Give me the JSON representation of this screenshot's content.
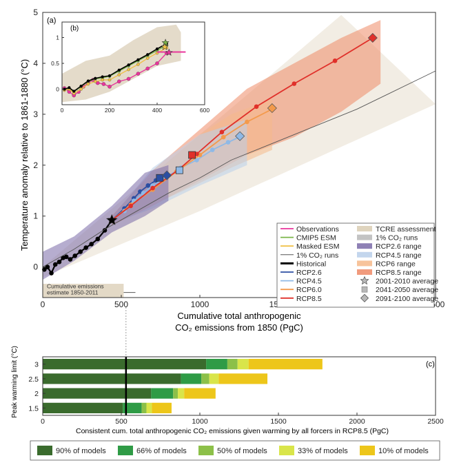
{
  "colors": {
    "historical": "#000000",
    "rcp26": "#2b4ea2",
    "rcp45": "#8fb9e6",
    "rcp60": "#f39a4c",
    "rcp85": "#e0302a",
    "observations": "#e8359b",
    "cmip5_esm": "#7ab648",
    "masked_esm": "#f0c24a",
    "one_pct": "#555555",
    "tcre": "#d9ccb3",
    "one_pct_range": "#b8b8b8",
    "rcp26_range": "#7a6aa8",
    "rcp45_range": "#b9cfea",
    "rcp60_range": "#f6b98a",
    "rcp85_range": "#ee8a66",
    "bar_90": "#3a6b2d",
    "bar_66": "#2f9b46",
    "bar_50": "#8cc049",
    "bar_33": "#d9e54a",
    "bar_10": "#edc61a"
  },
  "chart_data": [
    {
      "id": "a",
      "panel_label": "(a)",
      "type": "line",
      "xlabel": "Cumulative total anthropogenic",
      "xlabel_line2": "CO₂ emissions from 1850 (PgC)",
      "ylabel": "Temperature anomaly relative to 1861-1880 (°C)",
      "xlim": [
        0,
        2500
      ],
      "ylim": [
        -0.6,
        5
      ],
      "xticks": [
        0,
        500,
        1000,
        1500,
        2000,
        2500
      ],
      "yticks": [
        0,
        1,
        2,
        3,
        4,
        5
      ],
      "series": [
        {
          "name": "Historical",
          "key": "historical",
          "x": [
            10,
            30,
            55,
            80,
            105,
            130,
            150,
            175,
            205,
            240,
            275,
            310,
            350,
            395,
            440
          ],
          "y": [
            -0.05,
            0.0,
            -0.12,
            0.05,
            0.1,
            0.18,
            0.2,
            0.15,
            0.22,
            0.3,
            0.38,
            0.45,
            0.55,
            0.72,
            0.92
          ]
        },
        {
          "name": "RCP2.6",
          "key": "rcp26",
          "x": [
            440,
            520,
            580,
            620,
            670,
            720,
            760,
            790
          ],
          "y": [
            0.92,
            1.15,
            1.35,
            1.48,
            1.6,
            1.7,
            1.78,
            1.8
          ]
        },
        {
          "name": "RCP4.5",
          "key": "rcp45",
          "x": [
            440,
            520,
            580,
            640,
            700,
            780,
            880,
            980,
            1080,
            1180,
            1250
          ],
          "y": [
            0.92,
            1.1,
            1.3,
            1.45,
            1.6,
            1.75,
            1.95,
            2.1,
            2.3,
            2.45,
            2.55
          ]
        },
        {
          "name": "RCP6.0",
          "key": "rcp60",
          "x": [
            440,
            560,
            700,
            850,
            1000,
            1150,
            1300,
            1460
          ],
          "y": [
            0.92,
            1.22,
            1.52,
            1.87,
            2.2,
            2.55,
            2.85,
            3.1
          ]
        },
        {
          "name": "RCP8.5",
          "key": "rcp85",
          "x": [
            440,
            560,
            700,
            860,
            980,
            1140,
            1360,
            1600,
            1860,
            2100
          ],
          "y": [
            0.92,
            1.2,
            1.55,
            1.9,
            2.22,
            2.65,
            3.15,
            3.6,
            4.05,
            4.5
          ]
        },
        {
          "name": "1% CO₂ runs",
          "key": "one_pct",
          "x": [
            0,
            200,
            400,
            600,
            800,
            1000,
            1200,
            1400,
            1600,
            1800,
            2000,
            2200,
            2400,
            2500
          ],
          "y": [
            0,
            0.35,
            0.75,
            1.1,
            1.45,
            1.75,
            2.1,
            2.35,
            2.6,
            2.85,
            3.1,
            3.4,
            3.7,
            3.85
          ]
        }
      ],
      "markers": [
        {
          "series": "historical",
          "shape": "star",
          "x": 440,
          "y": 0.92
        },
        {
          "series": "rcp26",
          "shape": "square",
          "x": 745,
          "y": 1.75
        },
        {
          "series": "rcp26",
          "shape": "diamond",
          "x": 790,
          "y": 1.8
        },
        {
          "series": "rcp45",
          "shape": "square",
          "x": 870,
          "y": 1.9
        },
        {
          "series": "rcp45",
          "shape": "diamond",
          "x": 1255,
          "y": 2.57
        },
        {
          "series": "rcp60",
          "shape": "diamond",
          "x": 1460,
          "y": 3.12
        },
        {
          "series": "rcp85",
          "shape": "square",
          "x": 950,
          "y": 2.2
        },
        {
          "series": "rcp85",
          "shape": "diamond",
          "x": 2100,
          "y": 4.5
        }
      ],
      "ranges": [
        {
          "key": "rcp85_range",
          "upper": [
            [
              440,
              1.0
            ],
            [
              700,
              1.9
            ],
            [
              1000,
              2.7
            ],
            [
              1300,
              3.5
            ],
            [
              1600,
              4.0
            ],
            [
              1900,
              4.5
            ],
            [
              2150,
              4.85
            ]
          ],
          "lower": [
            [
              2150,
              3.6
            ],
            [
              1900,
              3.05
            ],
            [
              1600,
              2.55
            ],
            [
              1300,
              2.2
            ],
            [
              1000,
              1.7
            ],
            [
              700,
              1.2
            ],
            [
              440,
              0.82
            ]
          ]
        },
        {
          "key": "rcp60_range",
          "upper": [
            [
              440,
              1.0
            ],
            [
              700,
              1.8
            ],
            [
              1000,
              2.6
            ],
            [
              1200,
              3.0
            ],
            [
              1460,
              3.3
            ]
          ],
          "lower": [
            [
              1460,
              2.3
            ],
            [
              1200,
              1.95
            ],
            [
              1000,
              1.65
            ],
            [
              700,
              1.22
            ],
            [
              440,
              0.82
            ]
          ]
        },
        {
          "key": "rcp45_range",
          "upper": [
            [
              440,
              0.98
            ],
            [
              700,
              1.95
            ],
            [
              1000,
              2.6
            ],
            [
              1300,
              2.9
            ]
          ],
          "lower": [
            [
              1300,
              2.0
            ],
            [
              1000,
              1.6
            ],
            [
              700,
              1.15
            ],
            [
              440,
              0.85
            ]
          ]
        },
        {
          "key": "rcp26_range",
          "upper": [
            [
              0,
              0.3
            ],
            [
              200,
              0.6
            ],
            [
              440,
              1.2
            ],
            [
              650,
              1.85
            ],
            [
              800,
              2.0
            ]
          ],
          "lower": [
            [
              800,
              1.3
            ],
            [
              650,
              1.0
            ],
            [
              440,
              0.68
            ],
            [
              200,
              0.12
            ],
            [
              0,
              -0.25
            ]
          ]
        }
      ],
      "tcre_band": {
        "upper": [
          [
            0,
            0
          ],
          [
            500,
            1.3
          ],
          [
            1000,
            2.6
          ],
          [
            1500,
            3.9
          ],
          [
            1900,
            4.95
          ]
        ],
        "lower": [
          [
            2500,
            3.2
          ],
          [
            2000,
            2.5
          ],
          [
            1500,
            1.8
          ],
          [
            1000,
            1.1
          ],
          [
            500,
            0.45
          ],
          [
            0,
            -0.2
          ]
        ]
      },
      "cumulative_box": {
        "label_line1": "Cumulative emissions",
        "label_line2": "estimate 1850-2011",
        "xmin": 0,
        "xmax": 515,
        "center": 530,
        "whisker_max": 590
      },
      "legend_left": [
        {
          "label": "Observations",
          "key": "observations",
          "kind": "line"
        },
        {
          "label": "CMIP5 ESM",
          "key": "cmip5_esm",
          "kind": "line"
        },
        {
          "label": "Masked ESM",
          "key": "masked_esm",
          "kind": "line"
        },
        {
          "label": "1% CO₂ runs",
          "key": "one_pct",
          "kind": "thinline"
        },
        {
          "label": "Historical",
          "key": "historical",
          "kind": "thick"
        },
        {
          "label": "RCP2.6",
          "key": "rcp26",
          "kind": "line"
        },
        {
          "label": "RCP4.5",
          "key": "rcp45",
          "kind": "line"
        },
        {
          "label": "RCP6.0",
          "key": "rcp60",
          "kind": "line"
        },
        {
          "label": "RCP8.5",
          "key": "rcp85",
          "kind": "line"
        }
      ],
      "legend_right": [
        {
          "label": "TCRE assessment",
          "key": "tcre",
          "kind": "patch"
        },
        {
          "label": "1% CO₂ runs",
          "key": "one_pct_range",
          "kind": "patch"
        },
        {
          "label": "RCP2.6 range",
          "key": "rcp26_range",
          "kind": "patch"
        },
        {
          "label": "RCP4.5 range",
          "key": "rcp45_range",
          "kind": "patch"
        },
        {
          "label": "RCP6 range",
          "key": "rcp60_range",
          "kind": "patch"
        },
        {
          "label": "RCP8.5 range",
          "key": "rcp85_range",
          "kind": "patch"
        },
        {
          "label": "2001-2010 average",
          "key": "star",
          "kind": "star"
        },
        {
          "label": "2041-2050 average",
          "key": "square",
          "kind": "square"
        },
        {
          "label": "2091-2100 average",
          "key": "diamond",
          "kind": "diamond"
        }
      ]
    },
    {
      "id": "b",
      "panel_label": "(b)",
      "type": "line",
      "xlim": [
        0,
        600
      ],
      "ylim": [
        -0.3,
        1.3
      ],
      "xticks": [
        0,
        200,
        400,
        600
      ],
      "yticks": [
        0,
        0.5,
        1
      ],
      "ytick_labels": [
        "0",
        "0.5",
        "1"
      ],
      "series": [
        {
          "name": "Observations",
          "key": "observations",
          "x": [
            10,
            30,
            50,
            70,
            90,
            110,
            130,
            150,
            175,
            200,
            240,
            280,
            320,
            360,
            400,
            440
          ],
          "y": [
            0.02,
            -0.05,
            -0.12,
            -0.05,
            0.05,
            0.12,
            0.18,
            0.12,
            0.1,
            0.05,
            0.15,
            0.2,
            0.3,
            0.4,
            0.5,
            0.7
          ]
        },
        {
          "name": "CMIP5 ESM",
          "key": "cmip5_esm",
          "x": [
            10,
            30,
            50,
            80,
            110,
            140,
            170,
            200,
            240,
            280,
            320,
            360,
            400,
            440
          ],
          "y": [
            0.0,
            0.02,
            -0.05,
            0.05,
            0.15,
            0.2,
            0.22,
            0.25,
            0.35,
            0.45,
            0.55,
            0.65,
            0.75,
            0.85
          ]
        },
        {
          "name": "Masked ESM",
          "key": "masked_esm",
          "x": [
            10,
            30,
            50,
            80,
            110,
            140,
            170,
            200,
            240,
            280,
            320,
            360,
            400,
            440
          ],
          "y": [
            -0.02,
            0.0,
            -0.08,
            0.0,
            0.1,
            0.15,
            0.18,
            0.18,
            0.28,
            0.38,
            0.48,
            0.6,
            0.7,
            0.8
          ]
        },
        {
          "name": "Historical",
          "key": "historical",
          "x": [
            10,
            30,
            50,
            80,
            110,
            140,
            170,
            200,
            240,
            280,
            320,
            360,
            400,
            440
          ],
          "y": [
            0.0,
            0.03,
            -0.04,
            0.06,
            0.16,
            0.21,
            0.24,
            0.26,
            0.37,
            0.47,
            0.57,
            0.67,
            0.78,
            0.88
          ]
        }
      ],
      "obs_whisker": {
        "xmin": 400,
        "xmax": 520,
        "y": 0.72
      },
      "envelope": {
        "upper": [
          [
            0,
            0.3
          ],
          [
            100,
            0.55
          ],
          [
            200,
            0.65
          ],
          [
            300,
            0.95
          ],
          [
            400,
            1.2
          ],
          [
            480,
            1.25
          ],
          [
            500,
            1.1
          ]
        ],
        "lower": [
          [
            500,
            0.55
          ],
          [
            400,
            0.45
          ],
          [
            300,
            0.2
          ],
          [
            200,
            -0.05
          ],
          [
            100,
            -0.2
          ],
          [
            0,
            -0.25
          ]
        ]
      }
    },
    {
      "id": "c",
      "panel_label": "(c)",
      "type": "bar",
      "xlabel": "Consistent cum. total anthropogenic CO₂ emissions given warming by all forcers in RCP8.5 (PgC)",
      "ylabel": "Peak warming limit (°C)",
      "xlim": [
        0,
        2500
      ],
      "xticks": [
        0,
        500,
        1000,
        1500,
        2000,
        2500
      ],
      "categories": [
        "3",
        "2.5",
        "2",
        "1.5"
      ],
      "bars": [
        {
          "category": "3",
          "segments": [
            1040,
            1175,
            1240,
            1310,
            1780
          ]
        },
        {
          "category": "2.5",
          "segments": [
            880,
            1010,
            1060,
            1120,
            1430
          ]
        },
        {
          "category": "2",
          "segments": [
            690,
            830,
            860,
            900,
            1100
          ]
        },
        {
          "category": "1.5",
          "segments": [
            510,
            630,
            660,
            695,
            820
          ]
        }
      ],
      "marker_x": 530,
      "legend": [
        {
          "label": "90% of models",
          "key": "bar_90"
        },
        {
          "label": "66% of models",
          "key": "bar_66"
        },
        {
          "label": "50% of models",
          "key": "bar_50"
        },
        {
          "label": "33% of models",
          "key": "bar_33"
        },
        {
          "label": "10% of models",
          "key": "bar_10"
        }
      ]
    }
  ]
}
